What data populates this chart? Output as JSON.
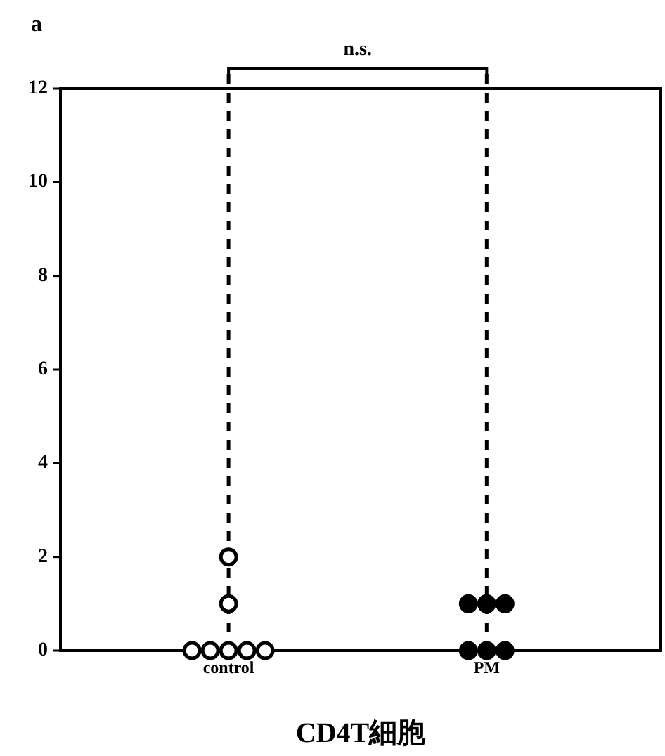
{
  "chart_data": {
    "type": "scatter",
    "title": "a",
    "xlabel": "CD4T細胞",
    "categories": [
      "control",
      "PM"
    ],
    "ylim": [
      0,
      12
    ],
    "yticks": [
      0,
      2,
      4,
      6,
      8,
      10,
      12
    ],
    "marker": "circle",
    "annotations": [
      "n.s."
    ],
    "ref_lines": [
      {
        "axis": "x",
        "value": "control",
        "line_style": "dashed",
        "color": "#000000"
      },
      {
        "axis": "x",
        "value": "PM",
        "line_style": "dashed",
        "color": "#000000"
      }
    ],
    "series": [
      {
        "color": "#ffffff",
        "x": [
          "control",
          "control",
          "control",
          "control",
          "control",
          "control",
          "control"
        ],
        "values": [
          0,
          0,
          0,
          0,
          0,
          1,
          2
        ]
      },
      {
        "color": "#000000",
        "x": [
          "PM",
          "PM",
          "PM",
          "PM",
          "PM",
          "PM"
        ],
        "values": [
          0,
          0,
          0,
          1,
          1,
          1
        ]
      }
    ]
  }
}
